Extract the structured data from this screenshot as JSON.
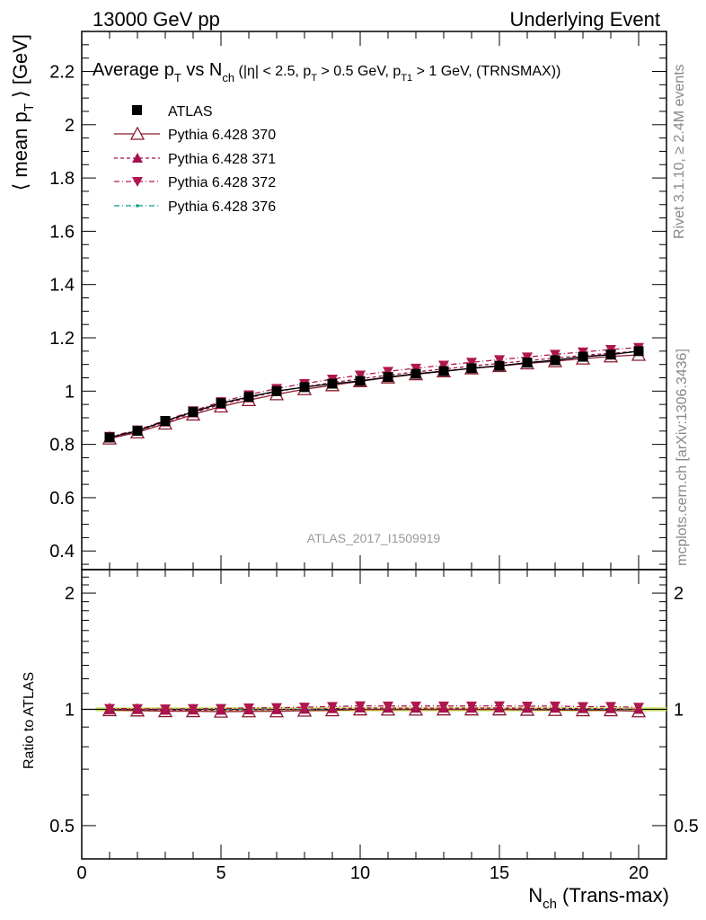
{
  "header": {
    "left": "13000 GeV pp",
    "right": "Underlying Event"
  },
  "side_labels": {
    "rivet": "Rivet 3.1.10, ≥ 2.4M events",
    "mcplots": "mcplots.cern.ch [arXiv:1306.3436]"
  },
  "chart_data": [
    {
      "type": "line",
      "title": {
        "main": "Average p",
        "main_sub": "T",
        "vs": " vs N",
        "vs_sub": "ch",
        "cuts_1": " (|η| < 2.5, p",
        "cuts_1_sub": "T",
        "cuts_2": " > 0.5 GeV, p",
        "cuts_2_sub": "T1",
        "cuts_3": " > 1 GeV, (TRNSMAX))"
      },
      "ylabel": {
        "open": "⟨ mean p",
        "sub": "T",
        "close": " ⟩ [GeV]"
      },
      "watermark": "ATLAS_2017_I1509919",
      "xlim": [
        0,
        21
      ],
      "ylim": [
        0.33,
        2.35
      ],
      "yticks": [
        0.4,
        0.6,
        0.8,
        1,
        1.2,
        1.4,
        1.6,
        1.8,
        2,
        2.2
      ],
      "ytick_labels": [
        "0.4",
        "0.6",
        "0.8",
        "1",
        "1.2",
        "1.4",
        "1.6",
        "1.8",
        "2",
        "2.2"
      ],
      "legend_position": "top-left",
      "x": [
        1,
        2,
        3,
        4,
        5,
        6,
        7,
        8,
        9,
        10,
        11,
        12,
        13,
        14,
        15,
        16,
        17,
        18,
        19,
        20
      ],
      "series": [
        {
          "name": "ATLAS",
          "marker": "square-filled",
          "color": "#000000",
          "dash": "none",
          "values": [
            0.826,
            0.851,
            0.888,
            0.922,
            0.955,
            0.978,
            1.0,
            1.015,
            1.028,
            1.038,
            1.053,
            1.065,
            1.075,
            1.086,
            1.095,
            1.107,
            1.116,
            1.129,
            1.137,
            1.15
          ]
        },
        {
          "name": "Pythia 6.428 370",
          "marker": "triangle-up-open",
          "color": "#8b1a2b",
          "dash": "none",
          "values": [
            0.822,
            0.845,
            0.878,
            0.912,
            0.942,
            0.966,
            0.988,
            1.007,
            1.022,
            1.037,
            1.051,
            1.063,
            1.074,
            1.085,
            1.094,
            1.104,
            1.112,
            1.122,
            1.13,
            1.136
          ]
        },
        {
          "name": "Pythia 6.428 371",
          "marker": "triangle-up-filled",
          "color": "#a6104e",
          "dash": "4,3",
          "values": [
            0.824,
            0.85,
            0.884,
            0.918,
            0.95,
            0.975,
            0.998,
            1.016,
            1.032,
            1.046,
            1.06,
            1.072,
            1.083,
            1.094,
            1.104,
            1.114,
            1.124,
            1.134,
            1.142,
            1.15
          ]
        },
        {
          "name": "Pythia 6.428 372",
          "marker": "triangle-down-filled",
          "color": "#b0174f",
          "dash": "6,3,1,3",
          "values": [
            0.83,
            0.854,
            0.89,
            0.926,
            0.96,
            0.986,
            1.01,
            1.028,
            1.045,
            1.06,
            1.074,
            1.086,
            1.097,
            1.108,
            1.118,
            1.128,
            1.138,
            1.147,
            1.156,
            1.164
          ]
        },
        {
          "name": "Pythia 6.428 376",
          "marker": "dot",
          "color": "#009a8a",
          "dash": "6,3,1,3",
          "values": [
            0.826,
            0.851,
            0.888,
            0.922,
            0.955,
            0.978,
            1.0,
            1.015,
            1.028,
            1.038,
            1.053,
            1.065,
            1.075,
            1.086,
            1.095,
            1.107,
            1.116,
            1.129,
            1.137,
            1.15
          ]
        }
      ]
    },
    {
      "type": "line",
      "ylabel": "Ratio to ATLAS",
      "xlabel": {
        "main": "N",
        "sub": "ch",
        "rest": " (Trans-max)"
      },
      "xlim": [
        0,
        21
      ],
      "ylim": [
        0.41,
        2.3
      ],
      "log_scale_y": true,
      "xticks": [
        0,
        5,
        10,
        15,
        20
      ],
      "xtick_labels": [
        "0",
        "5",
        "10",
        "15",
        "20"
      ],
      "yticks": [
        0.5,
        1,
        2
      ],
      "ytick_labels": [
        "0.5",
        "1",
        "2"
      ],
      "x": [
        1,
        2,
        3,
        4,
        5,
        6,
        7,
        8,
        9,
        10,
        11,
        12,
        13,
        14,
        15,
        16,
        17,
        18,
        19,
        20
      ],
      "ratio_band_color": "#d4e86b",
      "series": [
        {
          "name": "Pythia 6.428 370",
          "values": [
            0.995,
            0.993,
            0.989,
            0.989,
            0.986,
            0.988,
            0.988,
            0.992,
            0.994,
            0.999,
            0.998,
            0.998,
            0.999,
            0.999,
            0.999,
            0.997,
            0.996,
            0.994,
            0.994,
            0.988
          ]
        },
        {
          "name": "Pythia 6.428 371",
          "values": [
            0.998,
            0.999,
            0.995,
            0.996,
            0.995,
            0.997,
            0.998,
            1.001,
            1.004,
            1.008,
            1.007,
            1.007,
            1.007,
            1.007,
            1.008,
            1.006,
            1.007,
            1.004,
            1.004,
            1.0
          ]
        },
        {
          "name": "Pythia 6.428 372",
          "values": [
            1.005,
            1.004,
            1.002,
            1.004,
            1.005,
            1.008,
            1.01,
            1.013,
            1.017,
            1.021,
            1.02,
            1.02,
            1.02,
            1.02,
            1.021,
            1.019,
            1.02,
            1.016,
            1.017,
            1.012
          ]
        },
        {
          "name": "Pythia 6.428 376",
          "values": [
            1.0,
            1.0,
            1.0,
            1.0,
            1.0,
            1.0,
            1.0,
            1.0,
            1.0,
            1.0,
            1.0,
            1.0,
            1.0,
            1.0,
            1.0,
            1.0,
            1.0,
            1.0,
            1.0,
            1.0
          ]
        }
      ]
    }
  ]
}
